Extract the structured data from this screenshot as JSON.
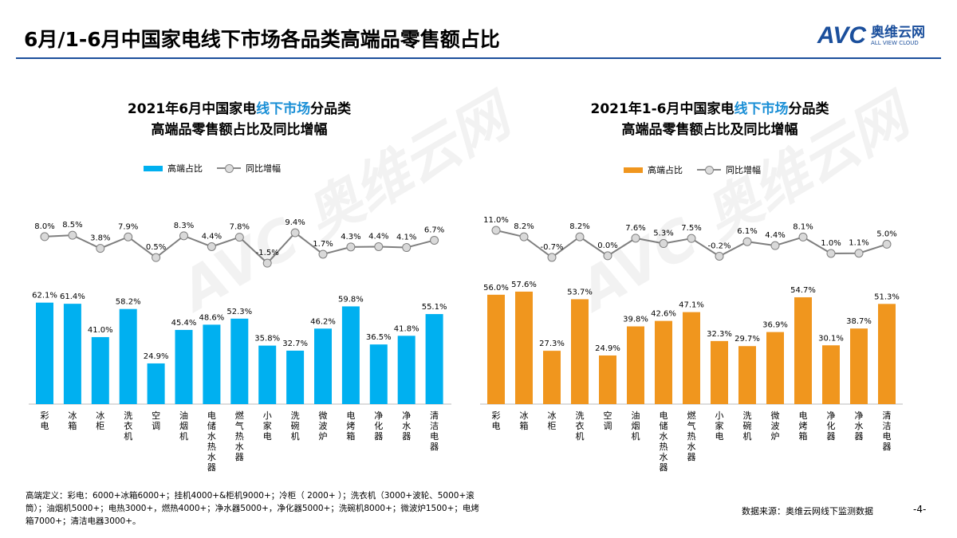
{
  "title": "6月/1-6月中国家电线下市场各品类高端品零售额占比",
  "logo": {
    "mark": "AVC",
    "cn": "奥维云网",
    "en": "ALL VIEW CLOUD"
  },
  "watermark": "AVC 奥维云网",
  "legend": {
    "bar": "高端占比",
    "line": "同比增幅"
  },
  "chart_data": [
    {
      "type": "bar+line",
      "title_parts": [
        "2021年6月中国家电",
        "线下市场",
        "分品类"
      ],
      "title_line2": "高端品零售额占比及同比增幅",
      "bar_color": "#00b0f0",
      "categories": [
        "彩电",
        "冰箱",
        "冰柜",
        "洗衣机",
        "空调",
        "油烟机",
        "电储水热水器",
        "燃气热水器",
        "小家电",
        "洗碗机",
        "微波炉",
        "电烤箱",
        "净化器",
        "净水器",
        "清洁电器"
      ],
      "series": [
        {
          "name": "高端占比",
          "type": "bar",
          "values": [
            62.1,
            61.4,
            41.0,
            58.2,
            24.9,
            45.4,
            48.6,
            52.3,
            35.8,
            32.7,
            46.2,
            59.8,
            36.5,
            41.8,
            55.1
          ]
        },
        {
          "name": "同比增幅",
          "type": "line",
          "values": [
            8.0,
            8.5,
            3.8,
            7.9,
            0.5,
            8.3,
            4.4,
            7.8,
            -1.5,
            9.4,
            1.7,
            4.3,
            4.4,
            4.1,
            6.7
          ]
        }
      ]
    },
    {
      "type": "bar+line",
      "title_parts": [
        "2021年1-6月中国家电",
        "线下市场",
        "分品类"
      ],
      "title_line2": "高端品零售额占比及同比增幅",
      "bar_color": "#f0961e",
      "categories": [
        "彩电",
        "冰箱",
        "冰柜",
        "洗衣机",
        "空调",
        "油烟机",
        "电储水热水器",
        "燃气热水器",
        "小家电",
        "洗碗机",
        "微波炉",
        "电烤箱",
        "净化器",
        "净水器",
        "清洁电器"
      ],
      "series": [
        {
          "name": "高端占比",
          "type": "bar",
          "values": [
            56.0,
            57.6,
            27.3,
            53.7,
            24.9,
            39.8,
            42.6,
            47.1,
            32.3,
            29.7,
            36.9,
            54.7,
            30.1,
            38.7,
            51.3
          ]
        },
        {
          "name": "同比增幅",
          "type": "line",
          "values": [
            11.0,
            8.2,
            -0.7,
            8.2,
            0.0,
            7.6,
            5.3,
            7.5,
            -0.2,
            6.1,
            4.4,
            8.1,
            1.0,
            1.1,
            5.0
          ]
        }
      ]
    }
  ],
  "note": "高端定义：彩电：6000+冰箱6000+；挂机4000+&柜机9000+；冷柜（ 2000+ ）；洗衣机（3000+波轮、5000+滚筒）；油烟机5000+；电热3000+，燃热4000+；净水器5000+，净化器5000+；洗碗机8000+；微波炉1500+；电烤箱7000+；清洁电器3000+。",
  "source": "数据来源：奥维云网线下监测数据",
  "page": "-4-"
}
